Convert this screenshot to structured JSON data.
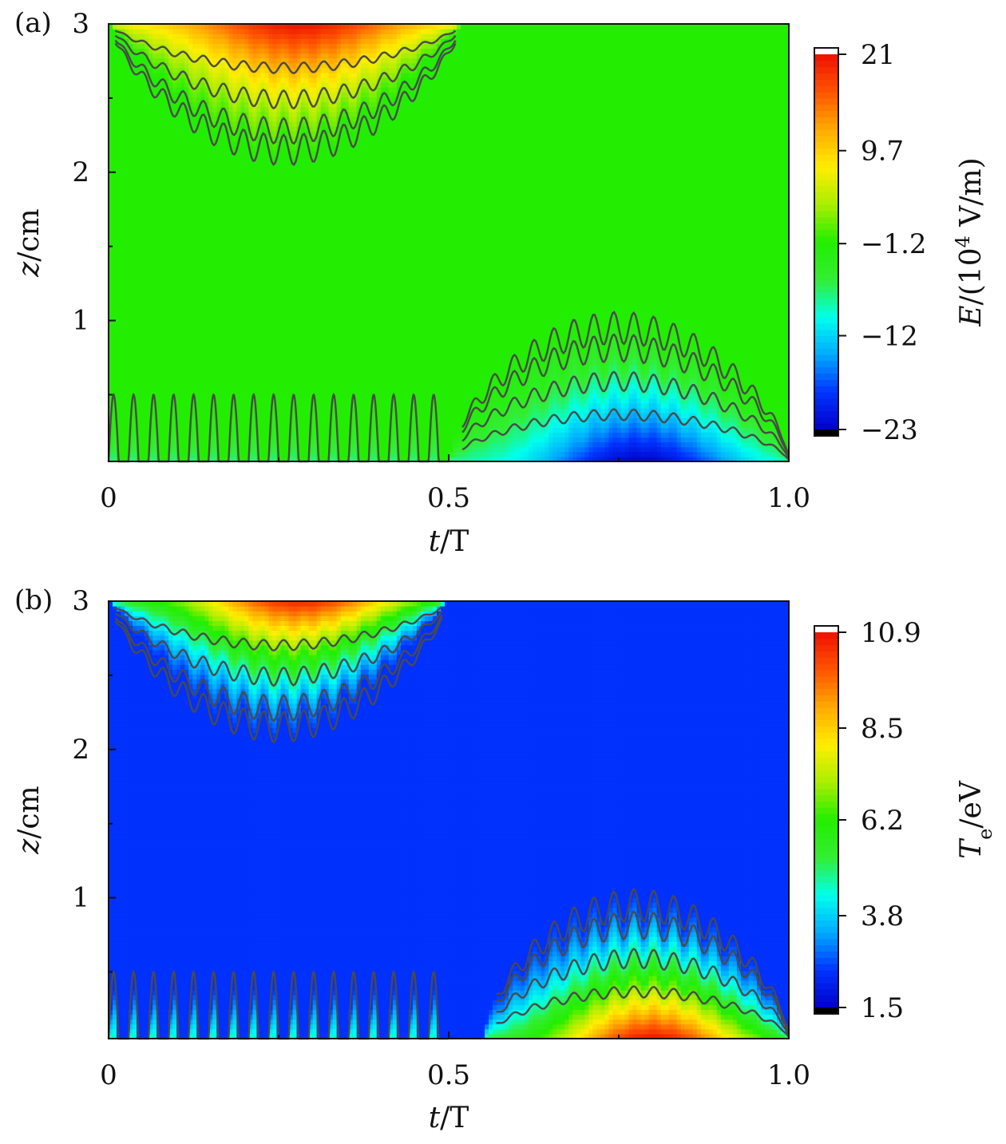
{
  "chart_data": [
    {
      "panel_label": "(a)",
      "type": "heatmap",
      "xlabel_var": "t",
      "xlabel_unit": "/T",
      "ylabel_var": "z",
      "ylabel_unit": "/cm",
      "xlim": [
        0,
        1.0
      ],
      "ylim": [
        0.05,
        3
      ],
      "x_ticks": [
        0,
        0.5,
        1.0
      ],
      "x_tick_labels": [
        "0",
        "0.5",
        "1.0"
      ],
      "y_ticks": [
        1,
        2,
        3
      ],
      "y_tick_labels": [
        "1",
        "2",
        "3"
      ],
      "colorbar": {
        "label_var": "E",
        "label_unit_pre": "/(10",
        "label_sup": "4",
        "label_unit_post": " V/m)",
        "min": -23,
        "max": 21,
        "ticks": [
          21,
          9.7,
          -1.2,
          -12,
          -23
        ],
        "tick_labels": [
          "21",
          "9.7",
          "−1.2",
          "−12",
          "−23"
        ],
        "colormap": [
          "#0000c8",
          "#0033ff",
          "#00aaff",
          "#00ffee",
          "#33ee33",
          "#22ee00",
          "#aaee00",
          "#ffee00",
          "#ffaa00",
          "#ff5500",
          "#ee1100"
        ]
      },
      "field": {
        "background": -1.2,
        "sheath_top": {
          "x_range": [
            0.0,
            0.52
          ],
          "peak_x": 0.28,
          "peak": 21,
          "top_z": 3,
          "depth_z": 0.85
        },
        "sheath_bottom": {
          "x_range": [
            0.5,
            1.0
          ],
          "peak_x": 0.78,
          "peak": -23,
          "bottom_z": 0.05,
          "depth_z": 0.9
        },
        "oscillation_periods": 34
      }
    },
    {
      "panel_label": "(b)",
      "type": "heatmap",
      "xlabel_var": "t",
      "xlabel_unit": "/T",
      "ylabel_var": "z",
      "ylabel_unit": "/cm",
      "xlim": [
        0,
        1.0
      ],
      "ylim": [
        0.05,
        3
      ],
      "x_ticks": [
        0,
        0.5,
        1.0
      ],
      "x_tick_labels": [
        "0",
        "0.5",
        "1.0"
      ],
      "y_ticks": [
        1,
        2,
        3
      ],
      "y_tick_labels": [
        "1",
        "2",
        "3"
      ],
      "colorbar": {
        "label_var": "T",
        "label_sub": "e",
        "label_unit": "/eV",
        "min": 1.5,
        "max": 10.9,
        "ticks": [
          10.9,
          8.5,
          6.2,
          3.8,
          1.5
        ],
        "tick_labels": [
          "10.9",
          "8.5",
          "6.2",
          "3.8",
          "1.5"
        ],
        "colormap": [
          "#0000c8",
          "#0033ff",
          "#00aaff",
          "#00ffee",
          "#33ee33",
          "#22ee00",
          "#aaee00",
          "#ffee00",
          "#ffaa00",
          "#ff5500",
          "#ee1100"
        ]
      },
      "field": {
        "background": 2.4,
        "sheath_top": {
          "x_range": [
            0.0,
            0.5
          ],
          "peak_x": 0.28,
          "peak": 10.6,
          "top_z": 3,
          "depth_z": 0.85
        },
        "sheath_bottom": {
          "x_range": [
            0.55,
            1.0
          ],
          "peak_x": 0.8,
          "peak": 10.9,
          "bottom_z": 0.05,
          "depth_z": 0.9
        },
        "oscillation_periods": 34
      }
    }
  ]
}
